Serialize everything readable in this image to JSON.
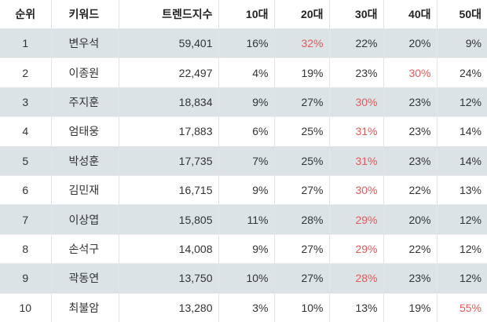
{
  "colors": {
    "stripe": "#dbe3e7",
    "highlight": "#e35a5a"
  },
  "headers": [
    "순위",
    "키워드",
    "트렌드지수",
    "10대",
    "20대",
    "30대",
    "40대",
    "50대"
  ],
  "rows": [
    {
      "rank": "1",
      "keyword": "변우석",
      "trend": "59,401",
      "ages": [
        "16%",
        "32%",
        "22%",
        "20%",
        "9%"
      ],
      "highlight": 1
    },
    {
      "rank": "2",
      "keyword": "이종원",
      "trend": "22,497",
      "ages": [
        "4%",
        "19%",
        "23%",
        "30%",
        "24%"
      ],
      "highlight": 3
    },
    {
      "rank": "3",
      "keyword": "주지훈",
      "trend": "18,834",
      "ages": [
        "9%",
        "27%",
        "30%",
        "23%",
        "12%"
      ],
      "highlight": 2
    },
    {
      "rank": "4",
      "keyword": "엄태웅",
      "trend": "17,883",
      "ages": [
        "6%",
        "25%",
        "31%",
        "23%",
        "14%"
      ],
      "highlight": 2
    },
    {
      "rank": "5",
      "keyword": "박성훈",
      "trend": "17,735",
      "ages": [
        "7%",
        "25%",
        "31%",
        "23%",
        "14%"
      ],
      "highlight": 2
    },
    {
      "rank": "6",
      "keyword": "김민재",
      "trend": "16,715",
      "ages": [
        "9%",
        "27%",
        "30%",
        "22%",
        "13%"
      ],
      "highlight": 2
    },
    {
      "rank": "7",
      "keyword": "이상엽",
      "trend": "15,805",
      "ages": [
        "11%",
        "28%",
        "29%",
        "20%",
        "12%"
      ],
      "highlight": 2
    },
    {
      "rank": "8",
      "keyword": "손석구",
      "trend": "14,008",
      "ages": [
        "9%",
        "27%",
        "29%",
        "22%",
        "12%"
      ],
      "highlight": 2
    },
    {
      "rank": "9",
      "keyword": "곽동연",
      "trend": "13,750",
      "ages": [
        "10%",
        "27%",
        "28%",
        "23%",
        "12%"
      ],
      "highlight": 2
    },
    {
      "rank": "10",
      "keyword": "최불암",
      "trend": "13,280",
      "ages": [
        "3%",
        "10%",
        "13%",
        "19%",
        "55%"
      ],
      "highlight": 4
    }
  ]
}
